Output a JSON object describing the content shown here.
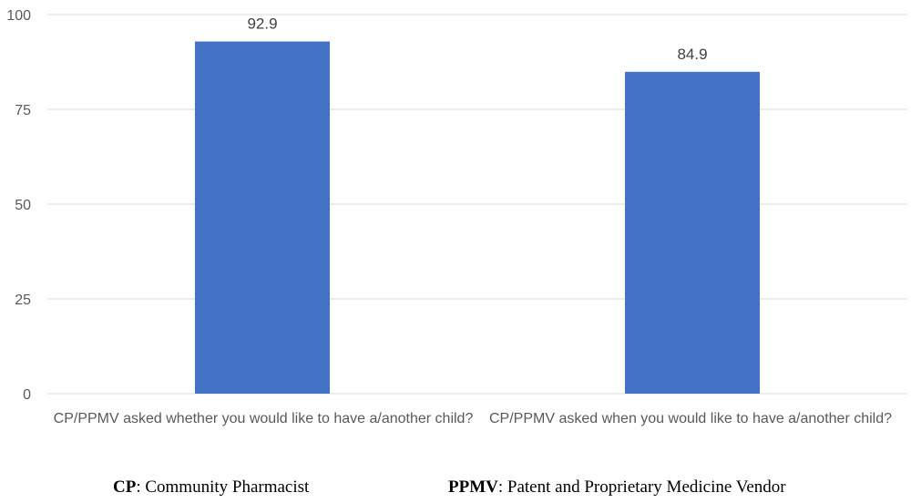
{
  "chart_data": {
    "type": "bar",
    "categories": [
      "CP/PPMV asked whether you would like to have a/another child?",
      "CP/PPMV asked when you would like to have a/another child?"
    ],
    "values": [
      92.9,
      84.9
    ],
    "data_labels": [
      "92.9",
      "84.9"
    ],
    "yticks": [
      "0",
      "25",
      "50",
      "75",
      "100"
    ],
    "ylim": [
      0,
      100
    ],
    "grid": true,
    "title": "",
    "xlabel": "",
    "ylabel": "",
    "bar_color": "#4472C4",
    "grid_color": "#D9D9D9"
  },
  "footnotes": [
    {
      "abbr": "CP",
      "text": ": Community Pharmacist"
    },
    {
      "abbr": "PPMV",
      "text": ": Patent and Proprietary Medicine Vendor"
    }
  ]
}
